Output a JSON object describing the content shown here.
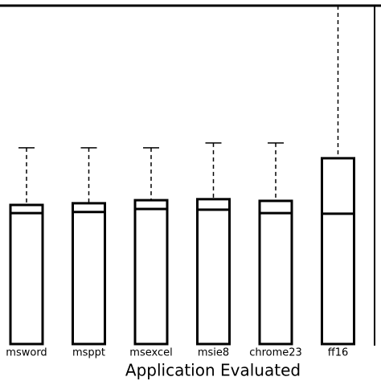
{
  "chart_data": {
    "type": "box",
    "x_label": "Application Evaluated",
    "categories": [
      "msword",
      "msppt",
      "msexcel",
      "msie8",
      "chrome23",
      "ff16"
    ],
    "q1": [
      0,
      0,
      0,
      0,
      0,
      0
    ],
    "median": [
      38.7,
      39,
      39.9,
      39.7,
      38.7,
      38.5
    ],
    "q3": [
      41.1,
      41.6,
      42.5,
      42.8,
      42.3,
      54.9
    ],
    "whisker_high": [
      58,
      58,
      58,
      59.4,
      59.4,
      100
    ],
    "ylim": [
      0,
      100
    ],
    "color": "#000000"
  }
}
